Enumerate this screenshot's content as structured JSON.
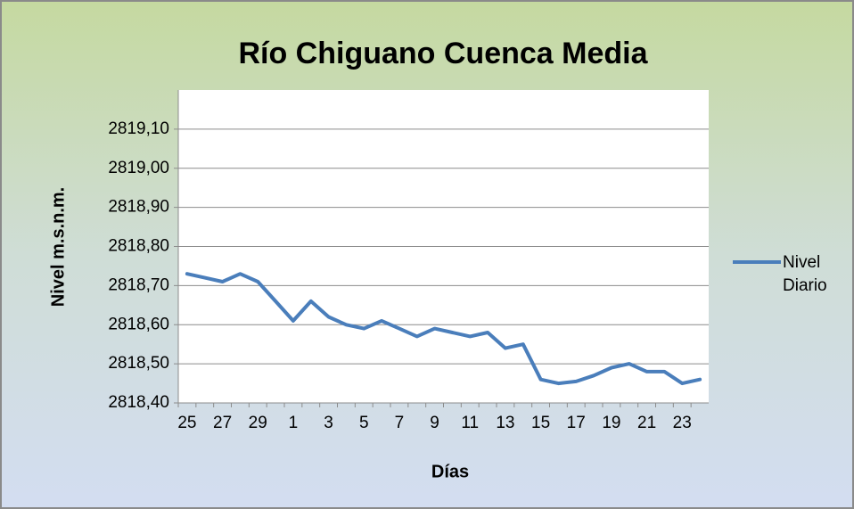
{
  "chart_data": {
    "type": "line",
    "title": "Río Chiguano Cuenca Media",
    "x_label": "Días",
    "y_label": "Nivel m.s.n.m.",
    "categories": [
      "25",
      null,
      "27",
      null,
      "29",
      null,
      "1",
      null,
      "3",
      null,
      "5",
      null,
      "7",
      null,
      "9",
      null,
      "11",
      null,
      "13",
      null,
      "15",
      null,
      "17",
      null,
      "19",
      null,
      "21",
      null,
      "23",
      null
    ],
    "series": [
      {
        "name": "Nivel Diario",
        "color": "#4a7ebb",
        "values": [
          2818.73,
          2818.72,
          2818.71,
          2818.73,
          2818.71,
          2818.66,
          2818.61,
          2818.66,
          2818.62,
          2818.6,
          2818.59,
          2818.61,
          2818.59,
          2818.57,
          2818.59,
          2818.58,
          2818.57,
          2818.58,
          2818.54,
          2818.55,
          2818.46,
          2818.45,
          2818.455,
          2818.47,
          2818.49,
          2818.5,
          2818.48,
          2818.48,
          2818.45,
          2818.46
        ]
      }
    ],
    "ylim": [
      2818.4,
      2819.2
    ],
    "yticks": [
      {
        "value": 2818.4,
        "label": "2818,40"
      },
      {
        "value": 2818.5,
        "label": "2818,50"
      },
      {
        "value": 2818.6,
        "label": "2818,60"
      },
      {
        "value": 2818.7,
        "label": "2818,70"
      },
      {
        "value": 2818.8,
        "label": "2818,80"
      },
      {
        "value": 2818.9,
        "label": "2818,90"
      },
      {
        "value": 2819.0,
        "label": "2819,00"
      },
      {
        "value": 2819.1,
        "label": "2819,10"
      }
    ],
    "grid": true,
    "legend": "right"
  }
}
